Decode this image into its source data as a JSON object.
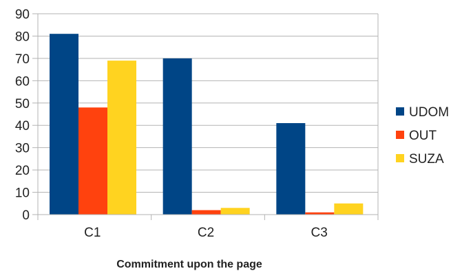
{
  "chart_data": {
    "type": "bar",
    "categories": [
      "C1",
      "C2",
      "C3"
    ],
    "series": [
      {
        "name": "UDOM",
        "values": [
          81,
          70,
          41
        ],
        "color": "#004586"
      },
      {
        "name": "OUT",
        "values": [
          48,
          2,
          1
        ],
        "color": "#ff420e"
      },
      {
        "name": "SUZA",
        "values": [
          69,
          3,
          5
        ],
        "color": "#ffd320"
      }
    ],
    "y_ticks": [
      "0",
      "10",
      "20",
      "30",
      "40",
      "50",
      "60",
      "70",
      "80",
      "90"
    ],
    "ylim": [
      0,
      90
    ],
    "xlabel": "Commitment upon the page",
    "ylabel": "",
    "title": "",
    "grid": true,
    "legend_position": "right"
  }
}
